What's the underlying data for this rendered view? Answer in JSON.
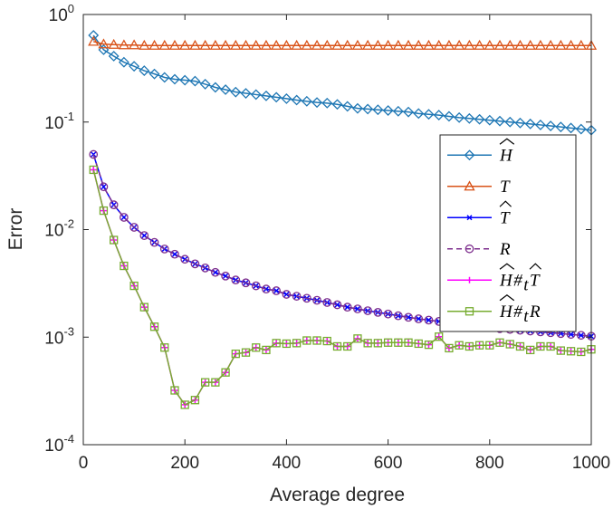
{
  "chart_data": {
    "type": "line",
    "title": "",
    "xlabel": "Average degree",
    "ylabel": "Error",
    "yscale": "log",
    "xlim": [
      0,
      1000
    ],
    "ylim": [
      0.0001,
      1
    ],
    "xticks": [
      0,
      200,
      400,
      600,
      800,
      1000
    ],
    "xtick_labels": [
      "0",
      "200",
      "400",
      "600",
      "800",
      "1000"
    ],
    "yticks": [
      1,
      0.1,
      0.01,
      0.001,
      0.0001
    ],
    "ytick_labels": [
      {
        "base": "10",
        "exp": "0"
      },
      {
        "base": "10",
        "exp": "-1"
      },
      {
        "base": "10",
        "exp": "-2"
      },
      {
        "base": "10",
        "exp": "-3"
      },
      {
        "base": "10",
        "exp": "-4"
      }
    ],
    "grid": false,
    "legend_position": "right",
    "x": [
      20,
      40,
      60,
      80,
      100,
      120,
      140,
      160,
      180,
      200,
      220,
      240,
      260,
      280,
      300,
      320,
      340,
      360,
      380,
      400,
      420,
      440,
      460,
      480,
      500,
      520,
      540,
      560,
      580,
      600,
      620,
      640,
      660,
      680,
      700,
      720,
      740,
      760,
      780,
      800,
      820,
      840,
      860,
      880,
      900,
      920,
      940,
      960,
      980,
      1000
    ],
    "series": [
      {
        "name": "Ĥ",
        "legend_parts": [
          {
            "text": "H",
            "hat": true
          }
        ],
        "color": "#1f77b4",
        "marker": "diamond",
        "linestyle": "solid",
        "values": [
          0.64,
          0.47,
          0.41,
          0.36,
          0.33,
          0.3,
          0.28,
          0.26,
          0.25,
          0.245,
          0.24,
          0.225,
          0.21,
          0.2,
          0.19,
          0.185,
          0.18,
          0.175,
          0.17,
          0.165,
          0.16,
          0.156,
          0.152,
          0.15,
          0.146,
          0.14,
          0.134,
          0.132,
          0.13,
          0.128,
          0.126,
          0.124,
          0.12,
          0.118,
          0.116,
          0.113,
          0.11,
          0.108,
          0.106,
          0.104,
          0.102,
          0.1,
          0.098,
          0.096,
          0.094,
          0.092,
          0.09,
          0.088,
          0.086,
          0.084
        ]
      },
      {
        "name": "T",
        "legend_parts": [
          {
            "text": "T",
            "hat": false
          }
        ],
        "color": "#d95319",
        "marker": "triangle",
        "linestyle": "solid",
        "values": [
          0.56,
          0.53,
          0.525,
          0.52,
          0.52,
          0.515,
          0.515,
          0.515,
          0.515,
          0.515,
          0.515,
          0.515,
          0.515,
          0.515,
          0.515,
          0.515,
          0.515,
          0.515,
          0.515,
          0.515,
          0.515,
          0.515,
          0.515,
          0.515,
          0.515,
          0.515,
          0.515,
          0.515,
          0.515,
          0.515,
          0.515,
          0.515,
          0.515,
          0.515,
          0.515,
          0.515,
          0.515,
          0.515,
          0.515,
          0.515,
          0.515,
          0.515,
          0.515,
          0.515,
          0.515,
          0.515,
          0.515,
          0.515,
          0.515,
          0.515
        ]
      },
      {
        "name": "T̂",
        "legend_parts": [
          {
            "text": "T",
            "hat": true
          }
        ],
        "color": "#0000ff",
        "marker": "x",
        "linestyle": "solid",
        "values": [
          0.05,
          0.025,
          0.017,
          0.013,
          0.0105,
          0.0088,
          0.0076,
          0.0066,
          0.0059,
          0.0053,
          0.0048,
          0.0044,
          0.004,
          0.0037,
          0.0034,
          0.0032,
          0.003,
          0.0028,
          0.0027,
          0.0025,
          0.0024,
          0.0023,
          0.0022,
          0.0021,
          0.002,
          0.0019,
          0.00183,
          0.00176,
          0.0017,
          0.00164,
          0.00158,
          0.00153,
          0.00148,
          0.00144,
          0.0014,
          0.00136,
          0.00132,
          0.00129,
          0.00126,
          0.00123,
          0.0012,
          0.00118,
          0.00116,
          0.00114,
          0.00112,
          0.0011,
          0.00108,
          0.00106,
          0.00104,
          0.00102
        ]
      },
      {
        "name": "R",
        "legend_parts": [
          {
            "text": "R",
            "hat": false
          }
        ],
        "color": "#7e2f8e",
        "marker": "circle",
        "linestyle": "dashed",
        "values": [
          0.05,
          0.025,
          0.017,
          0.013,
          0.0105,
          0.0088,
          0.0076,
          0.0066,
          0.0059,
          0.0053,
          0.0048,
          0.0044,
          0.004,
          0.0037,
          0.0034,
          0.0032,
          0.003,
          0.0028,
          0.0027,
          0.0025,
          0.0024,
          0.0023,
          0.0022,
          0.0021,
          0.002,
          0.0019,
          0.00183,
          0.00176,
          0.0017,
          0.00164,
          0.00158,
          0.00153,
          0.00148,
          0.00144,
          0.0014,
          0.00136,
          0.00132,
          0.00129,
          0.00126,
          0.00123,
          0.0012,
          0.00118,
          0.00116,
          0.00114,
          0.00112,
          0.0011,
          0.00108,
          0.00106,
          0.00104,
          0.00102
        ]
      },
      {
        "name": "Ĥ #t T̂",
        "legend_parts": [
          {
            "text": "H",
            "hat": true
          },
          {
            "text": "#",
            "hat": false
          },
          {
            "text": "t",
            "hat": false,
            "sub": true
          },
          {
            "text": "T",
            "hat": true
          }
        ],
        "color": "#ff00ff",
        "marker": "plus",
        "linestyle": "solid",
        "values": [
          0.036,
          0.015,
          0.008,
          0.0046,
          0.003,
          0.0019,
          0.00125,
          0.0008,
          0.00032,
          0.000235,
          0.00026,
          0.00038,
          0.00038,
          0.00047,
          0.0007,
          0.00072,
          0.0008,
          0.00076,
          0.00088,
          0.00087,
          0.00088,
          0.00093,
          0.00093,
          0.00092,
          0.00082,
          0.00082,
          0.00097,
          0.00088,
          0.00088,
          0.00089,
          0.00089,
          0.00089,
          0.00087,
          0.00085,
          0.00101,
          0.00079,
          0.00084,
          0.00082,
          0.00084,
          0.00084,
          0.00089,
          0.00086,
          0.00082,
          0.00076,
          0.00082,
          0.00082,
          0.00075,
          0.00074,
          0.00073,
          0.00077
        ]
      },
      {
        "name": "Ĥ #t R",
        "legend_parts": [
          {
            "text": "H",
            "hat": true
          },
          {
            "text": "#",
            "hat": false
          },
          {
            "text": "t",
            "hat": false,
            "sub": true
          },
          {
            "text": "R",
            "hat": false
          }
        ],
        "color": "#77ac30",
        "marker": "square",
        "linestyle": "solid",
        "values": [
          0.036,
          0.015,
          0.008,
          0.0046,
          0.003,
          0.0019,
          0.00125,
          0.0008,
          0.00032,
          0.000235,
          0.00026,
          0.00038,
          0.00038,
          0.00047,
          0.0007,
          0.00072,
          0.0008,
          0.00076,
          0.00088,
          0.00087,
          0.00088,
          0.00093,
          0.00093,
          0.00092,
          0.00082,
          0.00082,
          0.00097,
          0.00088,
          0.00088,
          0.00089,
          0.00089,
          0.00089,
          0.00087,
          0.00085,
          0.00101,
          0.00079,
          0.00084,
          0.00082,
          0.00084,
          0.00084,
          0.00089,
          0.00086,
          0.00082,
          0.00076,
          0.00082,
          0.00082,
          0.00075,
          0.00074,
          0.00073,
          0.00077
        ]
      }
    ]
  }
}
